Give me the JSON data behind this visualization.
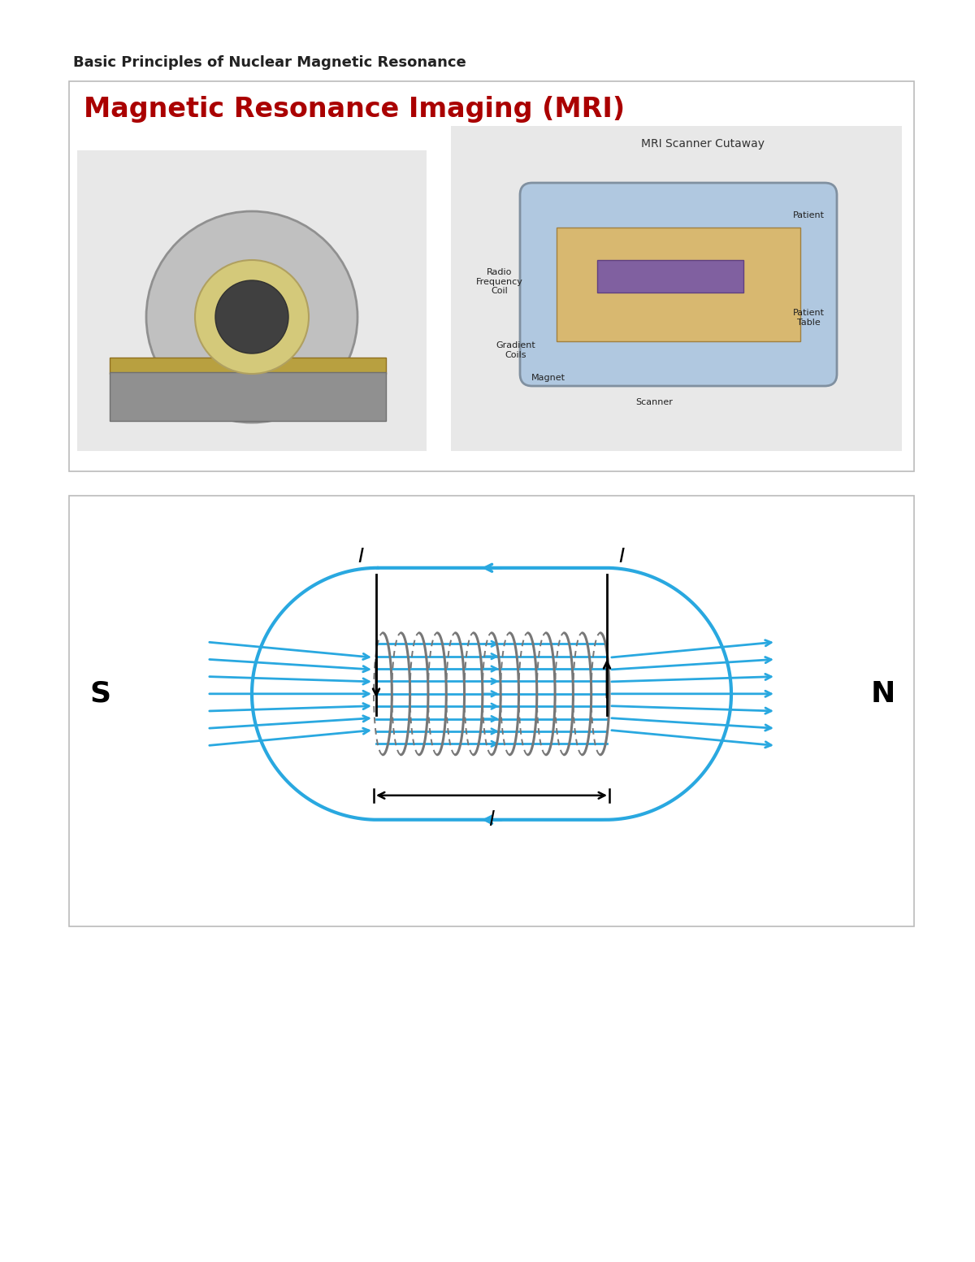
{
  "page_bg": "#ffffff",
  "header_text": "Basic Principles of Nuclear Magnetic Resonance",
  "header_fontsize": 13,
  "header_fontweight": "bold",
  "header_color": "#222222",
  "box1_border": "#bbbbbb",
  "box1_bg": "#ffffff",
  "mri_title": "Magnetic Resonance Imaging (MRI)",
  "mri_title_color": "#aa0000",
  "mri_title_fontsize": 24,
  "box2_border": "#bbbbbb",
  "box2_bg": "#ffffff",
  "solenoid_color": "#29a8e0",
  "coil_color": "#777777",
  "black": "#000000",
  "S_label": "S",
  "N_label": "N",
  "I_label": "I",
  "l_label": "l"
}
